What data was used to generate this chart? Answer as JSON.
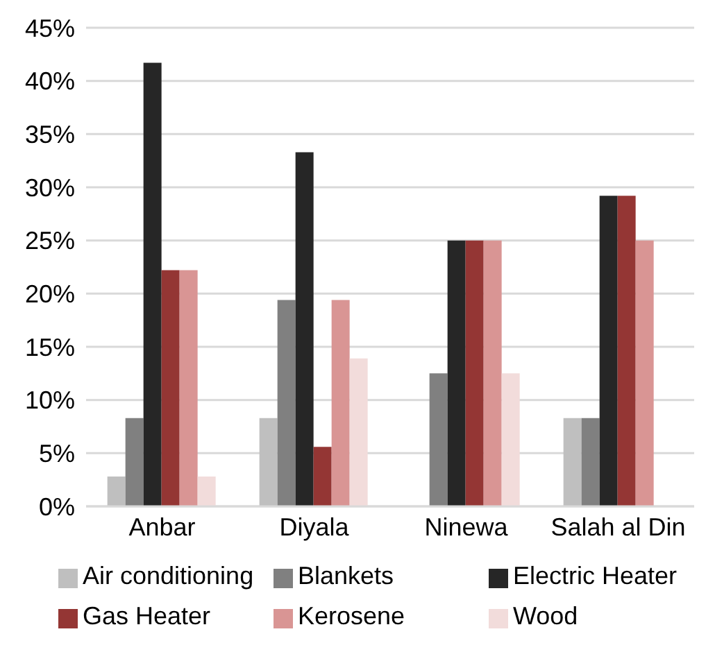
{
  "chart_data": {
    "type": "bar",
    "categories": [
      "Anbar",
      "Diyala",
      "Ninewa",
      "Salah al Din"
    ],
    "series": [
      {
        "name": "Air conditioning",
        "color": "#bfbfbf",
        "values": [
          2.8,
          8.3,
          0,
          8.3
        ]
      },
      {
        "name": "Blankets",
        "color": "#808080",
        "values": [
          8.3,
          19.4,
          12.5,
          8.3
        ]
      },
      {
        "name": "Electric Heater",
        "color": "#262626",
        "values": [
          41.7,
          33.3,
          25,
          29.2
        ]
      },
      {
        "name": "Gas Heater",
        "color": "#943634",
        "values": [
          22.2,
          5.6,
          25,
          29.2
        ]
      },
      {
        "name": "Kerosene",
        "color": "#d99594",
        "values": [
          22.2,
          19.4,
          25,
          25
        ]
      },
      {
        "name": "Wood",
        "color": "#f2dcdb",
        "values": [
          2.8,
          13.9,
          12.5,
          0
        ]
      }
    ],
    "ylim": [
      0,
      45
    ],
    "yticks": [
      {
        "value": 0,
        "label": "0%"
      },
      {
        "value": 5,
        "label": "5%"
      },
      {
        "value": 10,
        "label": "10%"
      },
      {
        "value": 15,
        "label": "15%"
      },
      {
        "value": 20,
        "label": "20%"
      },
      {
        "value": 25,
        "label": "25%"
      },
      {
        "value": 30,
        "label": "30%"
      },
      {
        "value": 35,
        "label": "35%"
      },
      {
        "value": 40,
        "label": "40%"
      },
      {
        "value": 45,
        "label": "45%"
      }
    ],
    "grid": "y",
    "legend": "bottom"
  }
}
